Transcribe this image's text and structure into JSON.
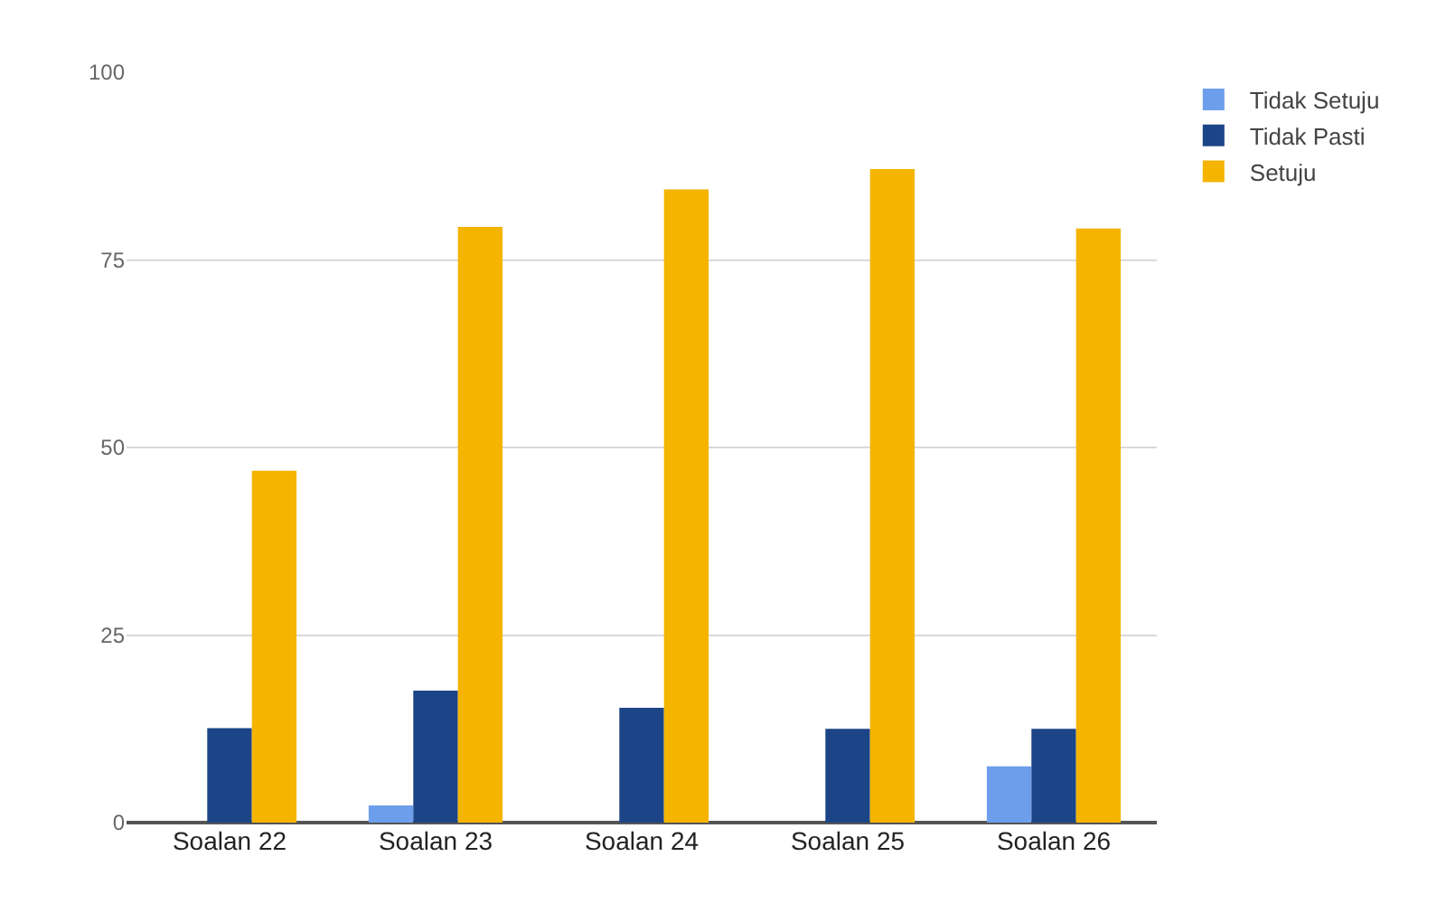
{
  "chart_data": {
    "type": "bar",
    "categories": [
      "Soalan 22",
      "Soalan 23",
      "Soalan 24",
      "Soalan 25",
      "Soalan 26"
    ],
    "series": [
      {
        "name": "Tidak Setuju",
        "color": "#6d9eeb",
        "values": [
          0,
          2.3,
          0,
          0,
          7.5
        ]
      },
      {
        "name": "Tidak Pasti",
        "color": "#1c4587",
        "values": [
          12.6,
          17.6,
          15.3,
          12.5,
          12.5
        ]
      },
      {
        "name": "Setuju",
        "color": "#f4b400",
        "values": [
          46.9,
          79.4,
          84.4,
          87.1,
          79.2
        ]
      }
    ],
    "ylim": [
      0,
      100
    ],
    "yticks": [
      0,
      25,
      50,
      75,
      100
    ],
    "grid": "y",
    "legend": "top right"
  }
}
